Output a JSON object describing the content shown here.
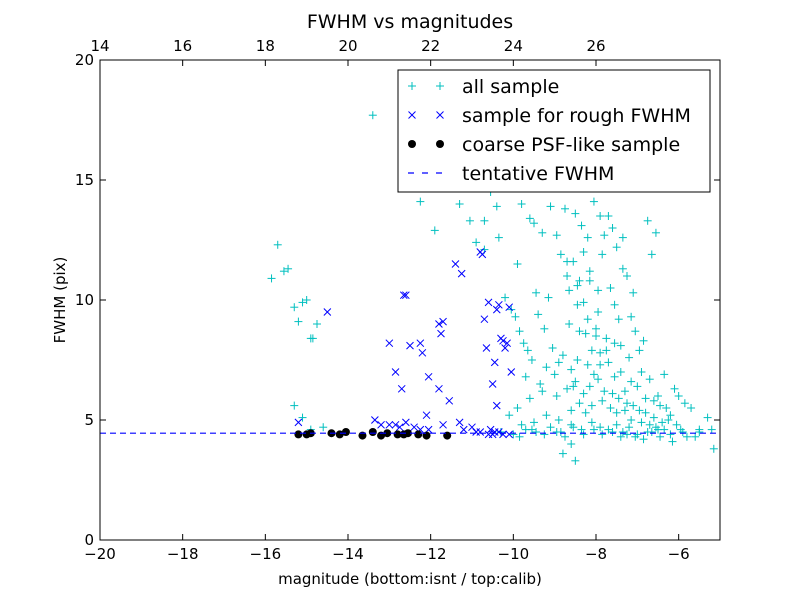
{
  "chart_data": {
    "type": "scatter",
    "title": "FWHM vs magnitudes",
    "xlabel": "magnitude (bottom:isnt / top:calib)",
    "ylabel": "FWHM (pix)",
    "xlim": [
      -20,
      -5
    ],
    "ylim": [
      0,
      20
    ],
    "x_ticks": [
      "−20",
      "−18",
      "−16",
      "−14",
      "−12",
      "−10",
      "−8",
      "−6"
    ],
    "x_tick_values": [
      -20,
      -18,
      -16,
      -14,
      -12,
      -10,
      -8,
      -6
    ],
    "y_ticks": [
      "0",
      "5",
      "10",
      "15",
      "20"
    ],
    "y_tick_values": [
      0,
      5,
      10,
      15,
      20
    ],
    "top_axis": {
      "ticks": [
        "14",
        "16",
        "18",
        "20",
        "22",
        "24",
        "26"
      ],
      "tick_values": [
        14,
        16,
        18,
        20,
        22,
        24,
        26
      ],
      "offset": 34.0
    },
    "grid": false,
    "legend_position": "top-right",
    "colors": {
      "all": "#00bfbf",
      "rough": "#0000ff",
      "coarse": "#000000",
      "tentative": "#0000ff"
    },
    "series": [
      {
        "name": "all sample",
        "marker": "plus",
        "x": [
          -15.7,
          -15.85,
          -15.55,
          -15.45,
          -15.3,
          -15.2,
          -15.1,
          -15.0,
          -14.9,
          -14.85,
          -14.75,
          -15.3,
          -15.1,
          -14.6,
          -14.9,
          -13.4,
          -12.6,
          -12.25,
          -11.9,
          -11.3,
          -11.05,
          -10.9,
          -10.7,
          -10.7,
          -10.55,
          -10.4,
          -10.35,
          -9.8,
          -9.6,
          -9.5,
          -9.3,
          -9.1,
          -8.95,
          -8.75,
          -8.5,
          -8.35,
          -8.2,
          -8.05,
          -7.9,
          -7.8,
          -7.7,
          -7.6,
          -7.5,
          -7.35,
          -7.25,
          -6.75,
          -6.55,
          -6.35,
          -6.1,
          -6.0,
          -5.85,
          -5.7,
          -5.5,
          -5.3,
          -5.15,
          -7.35,
          -7.1,
          -6.65,
          -8.45,
          -8.55,
          -9.9,
          -9.45,
          -9.15,
          -8.85,
          -8.7,
          -8.4,
          -8.3,
          -8.15,
          -7.95,
          -7.85,
          -7.65,
          -7.55,
          -7.45,
          -7.15,
          -7.05,
          -6.95,
          -6.85,
          -10.2,
          -10.05,
          -9.95,
          -9.85,
          -9.75,
          -9.65,
          -9.55,
          -9.4,
          -9.25,
          -9.05,
          -8.9,
          -8.65,
          -8.6,
          -8.25,
          -8.1,
          -8.0,
          -7.75,
          -7.4,
          -7.2,
          -6.9,
          -6.7,
          -6.5,
          -6.3,
          -6.2,
          -9.7,
          -9.35,
          -9.2,
          -9.0,
          -8.8,
          -8.55,
          -8.45,
          -8.2,
          -8.05,
          -7.9,
          -7.7,
          -7.55,
          -7.4,
          -7.3,
          -7.15,
          -7.0,
          -6.8,
          -6.6,
          -6.45,
          -10.1,
          -9.9,
          -9.6,
          -9.3,
          -8.95,
          -8.7,
          -8.5,
          -8.3,
          -8.15,
          -7.95,
          -7.8,
          -7.6,
          -7.45,
          -7.25,
          -7.1,
          -6.95,
          -6.8,
          -6.6,
          -6.4,
          -6.25,
          -6.05,
          -5.95,
          -9.8,
          -9.5,
          -9.2,
          -8.9,
          -8.6,
          -8.4,
          -8.25,
          -8.1,
          -7.85,
          -7.65,
          -7.5,
          -7.3,
          -7.15,
          -6.9,
          -6.7,
          -6.55,
          -6.35,
          -10.3,
          -10.0,
          -9.7,
          -9.45,
          -9.1,
          -8.85,
          -8.6,
          -8.35,
          -8.1,
          -7.9,
          -7.7,
          -7.5,
          -7.35,
          -7.2,
          -7.0,
          -6.75,
          -6.5,
          -6.2,
          -5.9,
          -5.6,
          -9.85,
          -9.55,
          -9.25,
          -8.95,
          -8.75,
          -8.55,
          -8.3,
          -8.05,
          -7.85,
          -7.6,
          -7.4,
          -7.25,
          -7.05,
          -6.85,
          -6.65,
          -6.45,
          -6.15,
          -5.8,
          -5.5,
          -5.2,
          -8.8,
          -8.6,
          -8.5,
          -8.4,
          -8.2,
          -8.0,
          -7.9,
          -7.75,
          -7.55,
          -8.3,
          -8.65,
          -8.15,
          -7.95,
          -8.45,
          -8.7
        ],
        "y": [
          12.3,
          10.9,
          11.2,
          11.3,
          9.7,
          9.1,
          9.9,
          10.0,
          8.4,
          8.4,
          9.0,
          5.6,
          5.1,
          4.7,
          4.6,
          17.7,
          16.9,
          14.1,
          12.9,
          14.0,
          13.3,
          12.4,
          13.3,
          12.1,
          14.5,
          13.9,
          12.6,
          14.0,
          13.4,
          13.2,
          12.8,
          13.9,
          12.7,
          13.8,
          13.6,
          13.1,
          12.6,
          14.1,
          13.5,
          12.7,
          13.5,
          13.0,
          12.2,
          12.6,
          11.0,
          13.3,
          12.8,
          6.9,
          6.3,
          6.0,
          5.7,
          5.5,
          4.6,
          5.1,
          3.8,
          11.3,
          10.3,
          11.9,
          9.8,
          11.6,
          11.5,
          10.3,
          10.1,
          11.9,
          11.6,
          10.8,
          12.0,
          11.2,
          10.4,
          11.9,
          10.5,
          9.8,
          9.2,
          9.3,
          8.7,
          7.9,
          8.3,
          10.1,
          9.6,
          9.3,
          8.7,
          8.2,
          7.9,
          7.5,
          9.4,
          8.8,
          8.0,
          7.4,
          9.0,
          7.1,
          8.6,
          7.9,
          8.8,
          8.4,
          8.1,
          7.6,
          7.0,
          6.7,
          6.0,
          5.5,
          5.2,
          6.8,
          6.5,
          7.2,
          6.9,
          7.7,
          6.4,
          7.5,
          7.3,
          6.9,
          7.8,
          7.4,
          6.8,
          7.0,
          6.2,
          6.6,
          6.4,
          5.9,
          5.8,
          5.6,
          5.2,
          5.5,
          5.9,
          6.2,
          6.0,
          6.3,
          6.6,
          6.1,
          6.4,
          6.7,
          6.2,
          6.1,
          5.9,
          5.7,
          5.6,
          5.4,
          5.3,
          5.1,
          4.9,
          5.0,
          4.8,
          4.6,
          4.8,
          4.9,
          5.2,
          5.0,
          5.4,
          5.7,
          5.3,
          5.6,
          5.8,
          5.5,
          5.3,
          5.4,
          5.0,
          4.9,
          4.8,
          4.7,
          4.6,
          4.5,
          4.4,
          4.6,
          4.5,
          4.7,
          4.5,
          4.8,
          4.6,
          4.9,
          4.7,
          4.6,
          4.8,
          4.5,
          4.7,
          4.4,
          4.5,
          4.6,
          4.4,
          4.5,
          4.3,
          4.3,
          4.6,
          4.4,
          4.5,
          4.3,
          4.7,
          4.4,
          4.6,
          4.4,
          4.5,
          4.3,
          4.4,
          4.3,
          4.2,
          4.5,
          4.3,
          4.1,
          4.3,
          4.5,
          4.6,
          3.6,
          4.0,
          3.3,
          8.7,
          9.2,
          8.5,
          7.3,
          7.9,
          8.2,
          9.9,
          10.4,
          10.8,
          9.5,
          10.6,
          11.0
        ]
      },
      {
        "name": "sample for rough FWHM",
        "marker": "x",
        "x": [
          -14.5,
          -13.0,
          -12.85,
          -12.7,
          -12.65,
          -12.6,
          -12.5,
          -12.25,
          -12.2,
          -12.05,
          -11.8,
          -11.8,
          -11.75,
          -11.7,
          -11.4,
          -11.25,
          -10.8,
          -10.75,
          -10.7,
          -10.65,
          -10.6,
          -10.5,
          -10.45,
          -10.4,
          -10.35,
          -10.3,
          -10.25,
          -10.2,
          -10.15,
          -10.1,
          -13.0,
          -12.75,
          -12.6,
          -12.25,
          -12.05,
          -11.7,
          -11.3,
          -10.8,
          -10.55,
          -10.5,
          -10.35,
          -15.2,
          -13.35,
          -13.2,
          -12.85,
          -12.4,
          -12.1,
          -11.55,
          -11.2,
          -11.0,
          -10.9,
          -10.6,
          -10.45,
          -10.25,
          -10.1,
          -10.4,
          -10.05
        ],
        "y": [
          9.5,
          8.2,
          7.0,
          6.3,
          10.2,
          10.2,
          8.1,
          8.2,
          7.8,
          6.8,
          6.3,
          9.0,
          8.6,
          9.1,
          11.5,
          11.1,
          12.0,
          11.9,
          9.2,
          8.0,
          9.9,
          6.5,
          7.4,
          9.6,
          9.8,
          8.4,
          8.3,
          8.0,
          8.2,
          9.7,
          4.8,
          4.7,
          4.9,
          4.6,
          4.6,
          4.8,
          4.9,
          4.5,
          4.6,
          4.4,
          4.5,
          4.9,
          5.0,
          4.8,
          4.8,
          4.7,
          5.2,
          5.8,
          4.6,
          4.7,
          4.5,
          4.4,
          4.5,
          4.4,
          4.4,
          5.6,
          7.0
        ]
      },
      {
        "name": "coarse PSF-like sample",
        "marker": "circle",
        "x": [
          -15.2,
          -15.0,
          -14.9,
          -14.4,
          -14.2,
          -14.05,
          -13.65,
          -13.4,
          -13.2,
          -13.05,
          -12.8,
          -12.65,
          -12.55,
          -12.3,
          -12.1,
          -11.6
        ],
        "y": [
          4.4,
          4.4,
          4.45,
          4.45,
          4.4,
          4.5,
          4.35,
          4.5,
          4.35,
          4.45,
          4.4,
          4.4,
          4.45,
          4.4,
          4.35,
          4.35
        ]
      },
      {
        "name": "tentative FWHM",
        "marker": "dashed-line",
        "y": 4.45
      }
    ]
  }
}
